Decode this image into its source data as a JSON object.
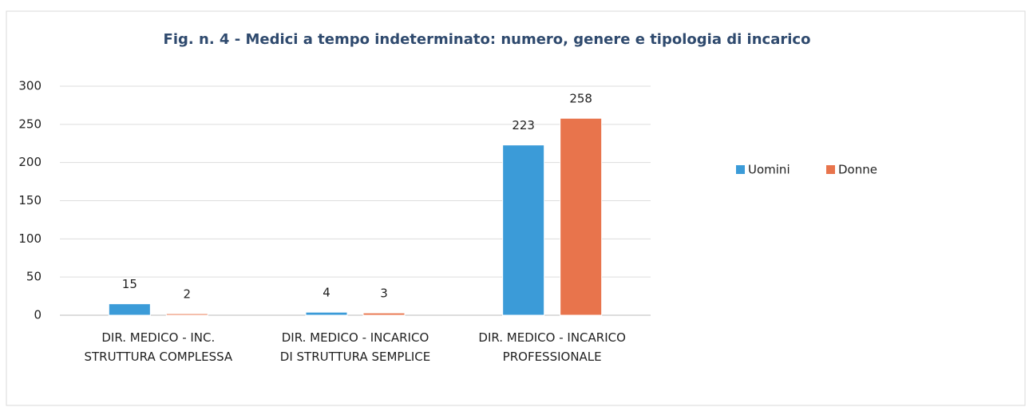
{
  "chart_data": {
    "type": "bar",
    "title": "Fig. n. 4  -  Medici a tempo indeterminato: numero, genere e tipologia di incarico",
    "categories": [
      "DIR. MEDICO - INC. STRUTTURA COMPLESSA",
      "DIR. MEDICO - INCARICO DI STRUTTURA SEMPLICE",
      "DIR. MEDICO - INCARICO PROFESSIONALE"
    ],
    "series": [
      {
        "name": "Uomini",
        "color": "#3b9bd8",
        "values": [
          15,
          4,
          223
        ]
      },
      {
        "name": "Donne",
        "color": "#e8744c",
        "values": [
          2,
          3,
          258
        ]
      }
    ],
    "ylim": [
      0,
      300
    ],
    "yticks": [
      0,
      50,
      100,
      150,
      200,
      250,
      300
    ],
    "grid": true,
    "legend": "right"
  }
}
